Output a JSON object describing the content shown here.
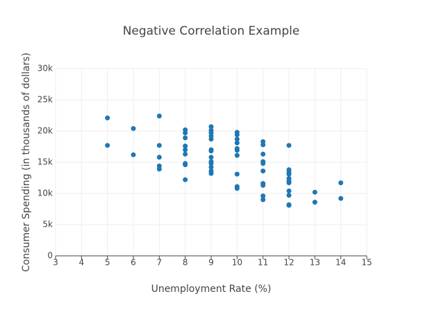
{
  "chart_data": {
    "type": "scatter",
    "title": "Negative Correlation Example",
    "x_label": "Unemployment Rate (%)",
    "y_label": "Consumer Spending (in thousands of dollars)",
    "color": "#1f77b4",
    "grid": true,
    "xlim": [
      3,
      15
    ],
    "xticks": [
      3,
      4,
      5,
      6,
      7,
      8,
      9,
      10,
      11,
      12,
      13,
      14,
      15
    ],
    "ylim": [
      0,
      30000
    ],
    "yticks": [
      0,
      {
        "value": 5000,
        "label": "5k"
      },
      {
        "value": 10000,
        "label": "10k"
      },
      {
        "value": 15000,
        "label": "15k"
      },
      {
        "value": 20000,
        "label": "20k"
      },
      {
        "value": 25000,
        "label": "25k"
      },
      {
        "value": 30000,
        "label": "30k"
      }
    ],
    "x": [
      5,
      5,
      6,
      6,
      7,
      7,
      7,
      7,
      7,
      8,
      8,
      8,
      8,
      8,
      8,
      8,
      8,
      8,
      9,
      9,
      9,
      9,
      9,
      9,
      9,
      9,
      9,
      9,
      9,
      9,
      9,
      10,
      10,
      10,
      10,
      10,
      10,
      10,
      10,
      10,
      10,
      11,
      11,
      11,
      11,
      11,
      11,
      11,
      11,
      11,
      11,
      12,
      12,
      12,
      12,
      12,
      12,
      12,
      12,
      12,
      12,
      12,
      13,
      13,
      14,
      14
    ],
    "values": [
      22100,
      17700,
      20400,
      16200,
      22400,
      17700,
      15800,
      14400,
      13900,
      20200,
      19700,
      18900,
      17600,
      17000,
      16300,
      14800,
      14600,
      12200,
      20700,
      20100,
      19700,
      19200,
      18700,
      17000,
      16800,
      15800,
      15100,
      14800,
      14200,
      13600,
      13200,
      19800,
      19400,
      18700,
      18100,
      17200,
      16900,
      16100,
      13100,
      11100,
      10800,
      18300,
      17800,
      16300,
      15100,
      14800,
      13600,
      11600,
      11300,
      9600,
      9000,
      17700,
      13800,
      13400,
      13100,
      12400,
      12000,
      11700,
      10400,
      9700,
      8200,
      8100,
      10200,
      8600,
      11700,
      9200
    ]
  }
}
